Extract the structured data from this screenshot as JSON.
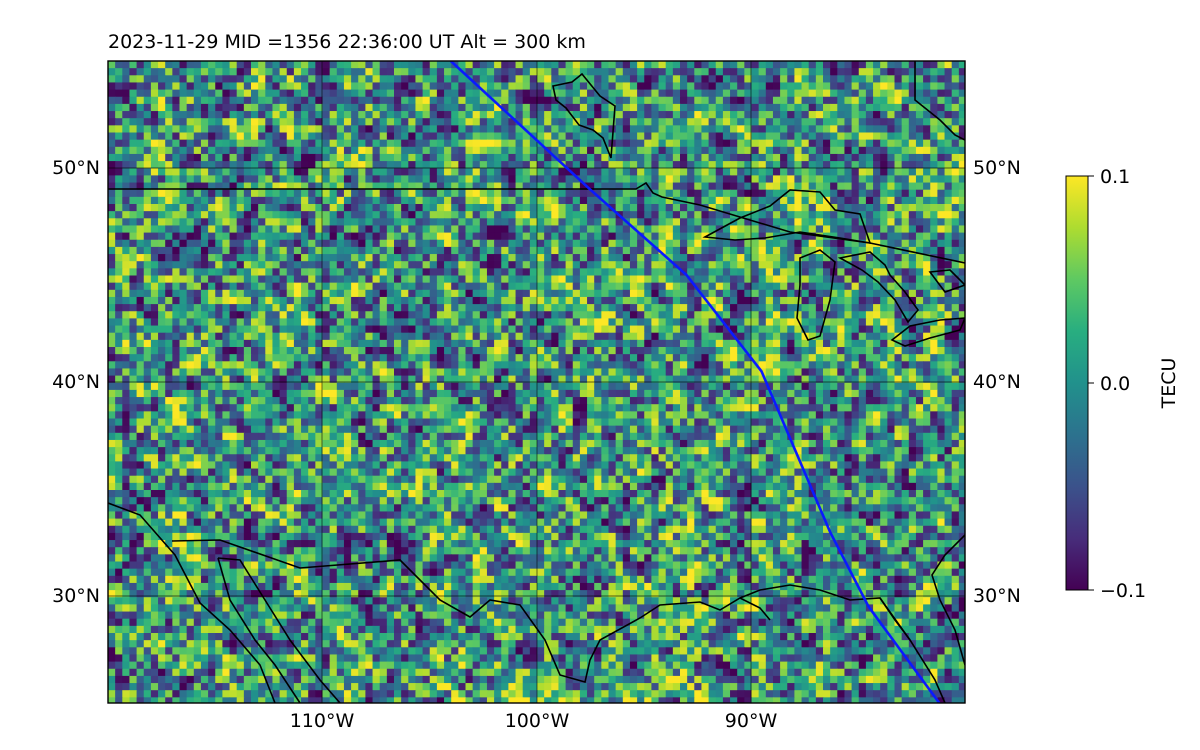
{
  "header": {
    "title": "2023-11-29  MID =1356    22:36:00  UT  Alt = 300 km"
  },
  "map": {
    "lat_extent": [
      25,
      55
    ],
    "lon_extent": [
      -120,
      -80
    ],
    "lat_ticks": [
      {
        "value": 50,
        "label": "50°N"
      },
      {
        "value": 40,
        "label": "40°N"
      },
      {
        "value": 30,
        "label": "30°N"
      }
    ],
    "lon_ticks": [
      {
        "value": -110,
        "label": "110°W"
      },
      {
        "value": -100,
        "label": "100°W"
      },
      {
        "value": -90,
        "label": "90°W"
      }
    ],
    "gridlines": true,
    "field_colormap": "viridis",
    "track_color": "#0a1aff",
    "coast_color": "#000000",
    "track": [
      [
        -104,
        55
      ],
      [
        -97.5,
        49
      ],
      [
        -93,
        45
      ],
      [
        -89.5,
        40.5
      ],
      [
        -86.3,
        33
      ],
      [
        -84.5,
        29.5
      ],
      [
        -81.2,
        25
      ]
    ]
  },
  "colorbar": {
    "label": "TECU",
    "max_label": "0.1",
    "mid_label": "0.0",
    "min_label": "−0.1",
    "vmin": -0.1,
    "vmax": 0.1
  }
}
